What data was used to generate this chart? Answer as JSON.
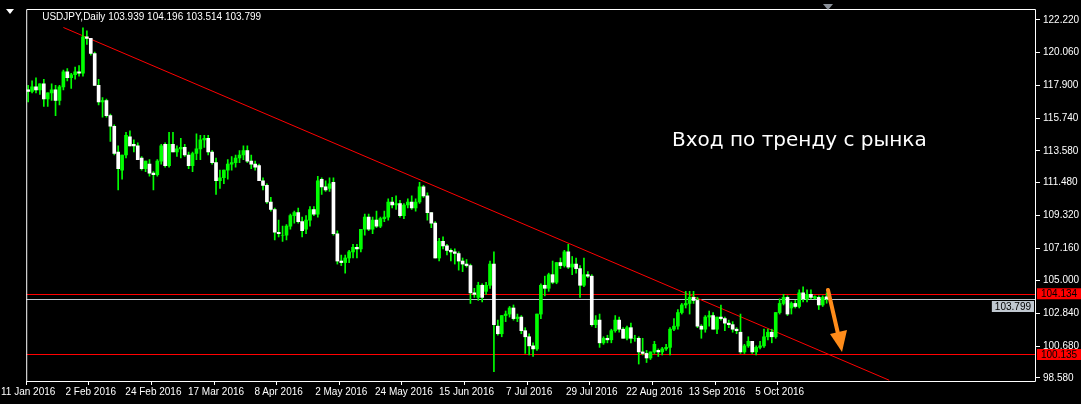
{
  "chart_data": {
    "type": "candlestick",
    "title": "USDJPY,Daily 103.939 104.196 103.514 103.799",
    "annotations": [
      "Вход по тренду с рынка"
    ],
    "categories": [
      "11 Jan 2016",
      null,
      null,
      null,
      null,
      null,
      null,
      null,
      null,
      null,
      null,
      null,
      null,
      null,
      null,
      null,
      "2 Feb 2016",
      null,
      null,
      null,
      null,
      null,
      null,
      null,
      null,
      null,
      null,
      null,
      null,
      null,
      null,
      null,
      "24 Feb 2016",
      null,
      null,
      null,
      null,
      null,
      null,
      null,
      null,
      null,
      null,
      null,
      null,
      null,
      null,
      null,
      "17 Mar 2016",
      null,
      null,
      null,
      null,
      null,
      null,
      null,
      null,
      null,
      null,
      null,
      null,
      null,
      null,
      null,
      "8 Apr 2016",
      null,
      null,
      null,
      null,
      null,
      null,
      null,
      null,
      null,
      null,
      null,
      null,
      null,
      null,
      null,
      "2 May 2016",
      null,
      null,
      null,
      null,
      null,
      null,
      null,
      null,
      null,
      null,
      null,
      null,
      null,
      null,
      null,
      "24 May 2016",
      null,
      null,
      null,
      null,
      null,
      null,
      null,
      null,
      null,
      null,
      null,
      null,
      null,
      null,
      null,
      "15 Jun 2016",
      null,
      null,
      null,
      null,
      null,
      null,
      null,
      null,
      null,
      null,
      null,
      null,
      null,
      null,
      null,
      "7 Jul 2016",
      null,
      null,
      null,
      null,
      null,
      null,
      null,
      null,
      null,
      null,
      null,
      null,
      null,
      null,
      null,
      "29 Jul 2016",
      null,
      null,
      null,
      null,
      null,
      null,
      null,
      null,
      null,
      null,
      null,
      null,
      null,
      null,
      null,
      "22 Aug 2016",
      null,
      null,
      null,
      null,
      null,
      null,
      null,
      null,
      null,
      null,
      null,
      null,
      null,
      null,
      null,
      "13 Sep 2016",
      null,
      null,
      null,
      null,
      null,
      null,
      null,
      null,
      null,
      null,
      null,
      null,
      null,
      null,
      null,
      "5 Oct 2016",
      null,
      null,
      null,
      null,
      null,
      null,
      null,
      null,
      null,
      null,
      null,
      null,
      null,
      null,
      null,
      null,
      null,
      null,
      null,
      null,
      null,
      null,
      null,
      null,
      null,
      null,
      null,
      null,
      null,
      null,
      null,
      null,
      null,
      null,
      null,
      null,
      null,
      null,
      null,
      null,
      null,
      null,
      null,
      null,
      null,
      null,
      null,
      null,
      null,
      null,
      null,
      null,
      null,
      null,
      null,
      null,
      null,
      null,
      null,
      null,
      null,
      null,
      null,
      null,
      null
    ],
    "color": "#00ff00",
    "colors": [
      "#ffffff",
      "#00ff00",
      "#ffffff",
      "#00ff00",
      "#ffffff",
      "#00ff00",
      "#00ff00",
      "#ffffff",
      "#00ff00",
      "#00ff00",
      "#ffffff",
      "#00ff00",
      "#00ff00",
      "#ffffff",
      "#00ff00",
      "#ffffff",
      "#ffffff",
      "#ffffff",
      "#ffffff",
      "#00ff00",
      "#ffffff",
      "#ffffff",
      "#ffffff",
      "#ffffff",
      "#00ff00",
      "#00ff00",
      "#ffffff",
      "#ffffff",
      "#ffffff",
      "#ffffff",
      "#00ff00",
      "#ffffff",
      "#ffffff",
      "#00ff00",
      "#00ff00",
      "#ffffff",
      "#00ff00",
      "#ffffff",
      "#00ff00",
      "#00ff00",
      "#ffffff",
      "#ffffff",
      "#00ff00",
      "#00ff00",
      "#00ff00",
      "#00ff00",
      "#ffffff",
      "#ffffff",
      "#ffffff",
      "#00ff00",
      "#00ff00",
      "#00ff00",
      "#00ff00",
      "#00ff00",
      "#00ff00",
      "#00ff00",
      "#ffffff",
      "#ffffff",
      "#ffffff",
      "#ffffff",
      "#ffffff",
      "#ffffff",
      "#ffffff",
      "#ffffff",
      "#ffffff",
      "#00ff00",
      "#00ff00",
      "#00ff00",
      "#00ff00",
      "#ffffff",
      "#ffffff",
      "#00ff00",
      "#00ff00",
      "#ffffff",
      "#00ff00",
      "#ffffff",
      "#ffffff",
      "#00ff00",
      "#ffffff",
      "#ffffff",
      "#ffffff",
      "#00ff00",
      "#00ff00",
      "#00ff00",
      "#ffffff",
      "#00ff00",
      "#00ff00",
      "#ffffff",
      "#00ff00",
      "#ffffff",
      "#00ff00",
      "#00ff00",
      "#00ff00",
      "#ffffff",
      "#00ff00",
      "#ffffff",
      "#00ff00",
      "#00ff00",
      "#ffffff",
      "#00ff00",
      "#00ff00",
      "#ffffff",
      "#ffffff",
      "#ffffff",
      "#ffffff",
      "#00ff00",
      "#ffffff",
      "#ffffff",
      "#ffffff",
      "#ffffff",
      "#ffffff",
      "#ffffff",
      "#ffffff",
      "#ffffff",
      "#ffffff",
      "#00ff00",
      "#ffffff",
      "#00ff00",
      "#00ff00",
      "#ffffff",
      "#ffffff",
      "#00ff00",
      "#00ff00",
      "#00ff00",
      "#ffffff",
      "#00ff00",
      "#ffffff",
      "#ffffff",
      "#ffffff",
      "#ffffff",
      "#00ff00",
      "#00ff00",
      "#ffffff",
      "#00ff00",
      "#ffffff",
      "#00ff00",
      "#ffffff",
      "#00ff00",
      "#ffffff",
      "#00ff00",
      "#ffffff",
      "#ffffff",
      "#00ff00",
      "#ffffff",
      "#ffffff",
      "#00ff00",
      "#ffffff",
      "#00ff00",
      "#ffffff",
      "#00ff00",
      "#00ff00",
      "#ffffff",
      "#ffffff",
      "#00ff00",
      "#ffffff",
      "#00ff00",
      "#ffffff",
      "#ffffff",
      "#ffffff",
      "#00ff00",
      "#00ff00",
      "#ffffff",
      "#00ff00",
      "#00ff00",
      "#00ff00",
      "#00ff00",
      "#00ff00",
      "#00ff00",
      "#00ff00",
      "#00ff00",
      "#ffffff",
      "#ffffff",
      "#ffffff",
      "#00ff00",
      "#00ff00",
      "#ffffff",
      "#00ff00",
      "#ffffff",
      "#ffffff",
      "#ffffff",
      "#ffffff",
      "#ffffff",
      "#ffffff",
      "#00ff00",
      "#00ff00",
      "#ffffff",
      "#00ff00",
      "#00ff00",
      "#00ff00",
      "#00ff00",
      "#ffffff",
      "#00ff00",
      "#00ff00",
      "#00ff00",
      "#ffffff",
      "#00ff00",
      "#ffffff",
      "#00ff00",
      "#ffffff",
      "#00ff00",
      "#ffffff",
      "#00ff00",
      "#ffffff",
      "#00ff00",
      "#ffffff",
      null,
      null,
      null,
      null,
      null,
      null,
      null,
      null,
      null,
      null,
      null,
      null,
      null,
      null,
      null,
      null,
      null,
      null,
      null,
      null,
      null,
      null,
      null,
      null,
      null,
      null,
      null,
      null,
      null,
      null,
      null,
      null,
      null,
      null,
      null,
      null,
      null,
      null,
      null,
      null,
      null,
      null,
      null,
      null,
      null,
      null,
      null,
      null,
      null,
      null,
      null,
      null,
      null
    ],
    "ohlc": [
      [
        117.6,
        117.9,
        116.8,
        117.5
      ],
      [
        117.5,
        118.2,
        117.4,
        117.8
      ],
      [
        117.8,
        118.4,
        117.4,
        117.6
      ],
      [
        117.6,
        118.0,
        117.3,
        118.0
      ],
      [
        118.0,
        118.3,
        116.5,
        117.0
      ],
      [
        117.0,
        117.4,
        116.5,
        117.4
      ],
      [
        117.4,
        118.0,
        116.9,
        117.6
      ],
      [
        117.6,
        117.9,
        115.9,
        116.9
      ],
      [
        116.9,
        117.9,
        116.6,
        117.8
      ],
      [
        117.8,
        118.9,
        117.6,
        118.8
      ],
      [
        118.8,
        119.0,
        118.2,
        118.4
      ],
      [
        118.4,
        118.7,
        117.7,
        118.6
      ],
      [
        118.6,
        119.1,
        118.3,
        118.8
      ],
      [
        118.8,
        119.2,
        118.5,
        118.7
      ],
      [
        118.7,
        121.7,
        118.5,
        121.1
      ],
      [
        121.1,
        121.5,
        120.6,
        121.0
      ],
      [
        121.0,
        121.0,
        119.9,
        120.0
      ],
      [
        120.0,
        120.1,
        117.9,
        117.9
      ],
      [
        117.9,
        118.3,
        116.6,
        116.8
      ],
      [
        116.8,
        117.1,
        115.8,
        116.9
      ],
      [
        116.9,
        117.0,
        115.8,
        115.9
      ],
      [
        115.9,
        116.0,
        114.2,
        115.2
      ],
      [
        115.2,
        115.3,
        113.3,
        113.4
      ],
      [
        113.5,
        113.9,
        111.0,
        112.4
      ],
      [
        112.3,
        113.3,
        111.7,
        113.3
      ],
      [
        113.3,
        114.8,
        113.1,
        114.6
      ],
      [
        114.5,
        114.9,
        113.9,
        113.9
      ],
      [
        114.0,
        114.3,
        113.5,
        113.9
      ],
      [
        113.9,
        114.1,
        113.0,
        113.0
      ],
      [
        113.1,
        113.2,
        112.3,
        112.4
      ],
      [
        112.4,
        112.9,
        112.2,
        112.9
      ],
      [
        112.7,
        113.0,
        111.9,
        112.1
      ],
      [
        112.1,
        112.2,
        111.0,
        112.0
      ],
      [
        112.0,
        113.0,
        111.9,
        112.9
      ],
      [
        112.9,
        114.0,
        112.7,
        113.9
      ],
      [
        114.0,
        114.1,
        112.5,
        112.6
      ],
      [
        112.6,
        114.8,
        112.5,
        114.0
      ],
      [
        114.0,
        114.8,
        113.5,
        113.5
      ],
      [
        113.5,
        113.9,
        113.2,
        113.7
      ],
      [
        113.7,
        114.4,
        113.1,
        113.8
      ],
      [
        113.8,
        114.0,
        113.2,
        113.3
      ],
      [
        113.3,
        113.5,
        112.4,
        112.6
      ],
      [
        112.6,
        113.5,
        112.2,
        113.4
      ],
      [
        113.4,
        114.7,
        113.0,
        113.7
      ],
      [
        113.7,
        114.6,
        113.0,
        114.3
      ],
      [
        114.3,
        114.6,
        113.8,
        114.4
      ],
      [
        114.4,
        114.6,
        113.3,
        113.5
      ],
      [
        113.5,
        113.6,
        112.7,
        112.8
      ],
      [
        112.8,
        113.1,
        110.7,
        111.6
      ],
      [
        111.6,
        112.3,
        111.1,
        111.8
      ],
      [
        111.8,
        112.3,
        111.4,
        112.3
      ],
      [
        112.3,
        113.0,
        111.7,
        112.7
      ],
      [
        112.7,
        113.2,
        112.3,
        112.8
      ],
      [
        112.8,
        113.3,
        112.5,
        113.1
      ],
      [
        113.1,
        113.6,
        112.8,
        113.3
      ],
      [
        113.3,
        113.9,
        113.0,
        113.6
      ],
      [
        113.6,
        113.9,
        112.8,
        112.9
      ],
      [
        112.9,
        113.3,
        112.4,
        112.7
      ],
      [
        112.7,
        112.9,
        112.3,
        112.5
      ],
      [
        112.6,
        112.7,
        111.6,
        111.6
      ],
      [
        111.6,
        111.8,
        111.0,
        111.3
      ],
      [
        111.3,
        111.4,
        110.1,
        110.2
      ],
      [
        110.2,
        110.5,
        109.6,
        109.7
      ],
      [
        109.7,
        109.8,
        107.7,
        108.2
      ],
      [
        108.2,
        109.0,
        107.9,
        108.1
      ],
      [
        108.0,
        108.6,
        107.6,
        108.0
      ],
      [
        108.0,
        108.7,
        107.7,
        108.6
      ],
      [
        108.6,
        109.4,
        108.4,
        109.3
      ],
      [
        109.3,
        109.6,
        108.8,
        109.5
      ],
      [
        109.5,
        109.8,
        108.8,
        108.9
      ],
      [
        108.9,
        109.2,
        107.9,
        108.3
      ],
      [
        108.4,
        109.3,
        108.1,
        109.0
      ],
      [
        109.0,
        109.9,
        108.6,
        109.7
      ],
      [
        109.7,
        109.9,
        109.3,
        109.4
      ],
      [
        109.4,
        111.9,
        109.2,
        111.6
      ],
      [
        111.7,
        111.8,
        110.7,
        111.2
      ],
      [
        111.2,
        111.6,
        110.9,
        111.0
      ],
      [
        111.1,
        111.8,
        110.9,
        111.4
      ],
      [
        111.5,
        111.8,
        108.0,
        108.1
      ],
      [
        108.1,
        108.3,
        106.1,
        106.3
      ],
      [
        106.3,
        106.7,
        106.0,
        106.2
      ],
      [
        106.2,
        106.7,
        105.5,
        106.5
      ],
      [
        106.5,
        107.0,
        106.2,
        106.9
      ],
      [
        106.9,
        107.4,
        106.5,
        107.2
      ],
      [
        107.2,
        107.4,
        106.5,
        107.1
      ],
      [
        107.1,
        108.4,
        106.9,
        108.4
      ],
      [
        108.4,
        109.4,
        108.0,
        109.2
      ],
      [
        109.2,
        109.4,
        108.3,
        108.4
      ],
      [
        108.4,
        109.2,
        108.1,
        109.0
      ],
      [
        109.0,
        109.6,
        108.5,
        108.6
      ],
      [
        108.6,
        109.2,
        108.5,
        109.1
      ],
      [
        109.1,
        109.6,
        108.9,
        109.2
      ],
      [
        109.2,
        110.4,
        109.0,
        110.2
      ],
      [
        110.2,
        110.5,
        109.8,
        110.0
      ],
      [
        110.0,
        110.6,
        109.7,
        110.1
      ],
      [
        110.1,
        110.3,
        109.2,
        109.3
      ],
      [
        109.3,
        110.1,
        109.1,
        110.0
      ],
      [
        110.0,
        110.4,
        109.8,
        110.2
      ],
      [
        110.2,
        110.6,
        109.7,
        109.8
      ],
      [
        109.8,
        110.4,
        109.6,
        110.2
      ],
      [
        110.2,
        111.5,
        110.1,
        111.2
      ],
      [
        111.2,
        111.3,
        110.5,
        110.6
      ],
      [
        110.6,
        110.8,
        109.0,
        109.5
      ],
      [
        109.5,
        109.5,
        108.5,
        108.8
      ],
      [
        108.8,
        108.9,
        106.5,
        106.5
      ],
      [
        106.5,
        107.8,
        106.3,
        107.6
      ],
      [
        107.6,
        107.9,
        107.1,
        107.3
      ],
      [
        107.3,
        107.4,
        106.7,
        107.0
      ],
      [
        107.0,
        107.1,
        106.3,
        106.9
      ],
      [
        106.9,
        107.1,
        106.1,
        106.8
      ],
      [
        106.8,
        106.9,
        105.7,
        106.3
      ],
      [
        106.3,
        106.5,
        105.6,
        106.1
      ],
      [
        106.1,
        106.4,
        105.9,
        106.0
      ],
      [
        106.0,
        106.1,
        103.5,
        104.2
      ],
      [
        104.2,
        104.5,
        103.9,
        104.1
      ],
      [
        103.9,
        104.9,
        103.7,
        104.7
      ],
      [
        104.7,
        104.8,
        103.6,
        103.9
      ],
      [
        104.3,
        104.9,
        104.1,
        104.7
      ],
      [
        104.7,
        106.3,
        104.5,
        106.1
      ],
      [
        106.1,
        106.9,
        99.0,
        102.1
      ],
      [
        102.0,
        102.4,
        101.4,
        101.5
      ],
      [
        101.5,
        102.7,
        101.3,
        102.7
      ],
      [
        102.7,
        103.0,
        102.3,
        102.8
      ],
      [
        102.8,
        103.3,
        102.6,
        103.2
      ],
      [
        103.2,
        103.4,
        102.4,
        102.5
      ],
      [
        102.5,
        102.8,
        102.3,
        102.6
      ],
      [
        102.6,
        102.7,
        101.5,
        101.7
      ],
      [
        101.7,
        101.9,
        100.2,
        101.3
      ],
      [
        101.3,
        101.5,
        100.1,
        100.7
      ],
      [
        100.7,
        100.9,
        100.0,
        100.5
      ],
      [
        100.5,
        102.8,
        100.4,
        102.8
      ],
      [
        102.8,
        104.8,
        102.5,
        104.7
      ],
      [
        104.7,
        105.3,
        104.0,
        104.5
      ],
      [
        104.5,
        105.5,
        104.3,
        105.4
      ],
      [
        105.4,
        106.3,
        104.8,
        104.9
      ],
      [
        104.9,
        106.2,
        104.8,
        106.2
      ],
      [
        106.2,
        106.5,
        105.8,
        106.0
      ],
      [
        106.0,
        107.0,
        105.9,
        106.9
      ],
      [
        106.9,
        107.4,
        105.8,
        105.9
      ],
      [
        105.9,
        106.6,
        105.4,
        106.1
      ],
      [
        106.1,
        106.5,
        105.5,
        105.8
      ],
      [
        105.8,
        106.0,
        103.9,
        104.7
      ],
      [
        104.7,
        106.5,
        104.6,
        105.4
      ],
      [
        105.4,
        105.6,
        105.2,
        105.3
      ],
      [
        105.3,
        105.4,
        102.0,
        102.1
      ],
      [
        102.1,
        102.7,
        101.9,
        102.4
      ],
      [
        102.4,
        102.8,
        100.6,
        100.9
      ],
      [
        100.9,
        101.3,
        100.8,
        101.2
      ],
      [
        101.2,
        101.4,
        100.9,
        101.1
      ],
      [
        101.1,
        101.8,
        100.9,
        101.7
      ],
      [
        101.7,
        102.7,
        101.6,
        102.4
      ],
      [
        102.4,
        102.6,
        101.6,
        101.8
      ],
      [
        101.8,
        101.9,
        101.2,
        101.2
      ],
      [
        101.2,
        102.0,
        101.1,
        101.9
      ],
      [
        101.9,
        102.2,
        100.9,
        101.2
      ],
      [
        101.2,
        101.4,
        101.0,
        101.2
      ],
      [
        101.2,
        101.3,
        99.5,
        100.3
      ],
      [
        100.3,
        101.2,
        100.1,
        100.2
      ],
      [
        100.2,
        100.4,
        99.6,
        99.9
      ],
      [
        99.9,
        100.3,
        99.8,
        100.3
      ],
      [
        100.3,
        101.0,
        100.2,
        100.8
      ],
      [
        100.4,
        100.5,
        100.0,
        100.3
      ],
      [
        100.3,
        100.6,
        100.1,
        100.5
      ],
      [
        100.5,
        100.8,
        100.4,
        100.6
      ],
      [
        100.6,
        101.9,
        100.1,
        101.8
      ],
      [
        101.8,
        102.5,
        101.7,
        102.0
      ],
      [
        102.0,
        103.1,
        101.8,
        102.9
      ],
      [
        102.9,
        103.5,
        102.8,
        103.4
      ],
      [
        103.4,
        104.3,
        103.2,
        103.5
      ],
      [
        103.5,
        104.3,
        102.8,
        103.9
      ],
      [
        103.9,
        104.3,
        103.5,
        103.7
      ],
      [
        103.7,
        103.9,
        101.9,
        102.0
      ],
      [
        102.0,
        102.1,
        101.2,
        101.8
      ],
      [
        101.8,
        102.7,
        101.6,
        102.6
      ],
      [
        102.6,
        103.0,
        102.0,
        102.7
      ],
      [
        102.7,
        102.9,
        101.8,
        101.8
      ],
      [
        101.8,
        102.6,
        101.5,
        102.6
      ],
      [
        102.6,
        103.4,
        102.4,
        102.5
      ],
      [
        102.5,
        102.6,
        101.7,
        102.2
      ],
      [
        102.2,
        102.4,
        101.9,
        102.1
      ],
      [
        102.1,
        102.3,
        101.6,
        101.8
      ],
      [
        101.8,
        101.9,
        101.5,
        101.7
      ],
      [
        101.6,
        102.8,
        100.2,
        100.3
      ],
      [
        100.3,
        100.8,
        100.2,
        100.7
      ],
      [
        100.7,
        101.3,
        100.6,
        101.0
      ],
      [
        101.0,
        101.0,
        100.2,
        100.3
      ],
      [
        100.3,
        100.7,
        100.1,
        100.6
      ],
      [
        100.6,
        101.0,
        100.5,
        100.7
      ],
      [
        100.7,
        101.8,
        100.6,
        101.3
      ],
      [
        101.3,
        101.8,
        101.1,
        101.6
      ],
      [
        101.6,
        101.8,
        100.9,
        101.3
      ],
      [
        101.3,
        102.9,
        101.2,
        102.9
      ],
      [
        102.9,
        103.8,
        102.8,
        103.5
      ],
      [
        103.5,
        104.1,
        103.4,
        103.9
      ],
      [
        103.9,
        104.0,
        102.7,
        102.8
      ],
      [
        103.2,
        103.6,
        102.8,
        103.5
      ],
      [
        103.5,
        103.7,
        103.2,
        103.3
      ],
      [
        103.3,
        104.4,
        103.2,
        104.2
      ],
      [
        104.2,
        104.6,
        103.6,
        103.8
      ],
      [
        103.8,
        104.4,
        103.6,
        104.1
      ],
      [
        104.1,
        104.4,
        103.8,
        103.9
      ],
      [
        103.85,
        104.0,
        103.8,
        103.95
      ],
      [
        103.9,
        104.0,
        103.1,
        103.4
      ],
      [
        103.4,
        104.0,
        103.3,
        103.9
      ],
      [
        103.939,
        104.196,
        103.514,
        103.799
      ],
      null,
      null,
      null,
      null,
      null,
      null,
      null,
      null,
      null,
      null,
      null,
      null,
      null,
      null,
      null,
      null,
      null,
      null,
      null,
      null,
      null,
      null,
      null,
      null,
      null,
      null,
      null,
      null,
      null,
      null,
      null,
      null,
      null,
      null,
      null,
      null,
      null,
      null,
      null,
      null,
      null,
      null,
      null,
      null,
      null,
      null,
      null,
      null,
      null,
      null,
      null,
      null,
      null
    ],
    "series": [
      {
        "type": "line",
        "color": "#ff0000",
        "values": [
          null,
          null,
          null,
          null,
          null,
          null,
          null,
          null,
          null,
          121.72,
          null,
          null,
          null,
          null,
          null,
          null,
          null,
          null,
          null,
          null,
          null,
          null,
          null,
          null,
          null,
          null,
          null,
          null,
          null,
          null,
          null,
          null,
          null,
          null,
          null,
          null,
          null,
          null,
          null,
          null,
          null,
          null,
          null,
          null,
          null,
          null,
          null,
          null,
          null,
          null,
          null,
          null,
          null,
          null,
          null,
          null,
          null,
          null,
          null,
          null,
          null,
          null,
          null,
          null,
          null,
          null,
          null,
          null,
          null,
          null,
          null,
          null,
          null,
          null,
          null,
          null,
          null,
          null,
          null,
          null,
          null,
          null,
          null,
          null,
          null,
          null,
          null,
          null,
          null,
          null,
          null,
          null,
          null,
          null,
          null,
          null,
          null,
          null,
          null,
          null,
          null,
          null,
          null,
          null,
          null,
          null,
          null,
          null,
          null,
          null,
          null,
          null,
          null,
          null,
          null,
          null,
          null,
          null,
          null,
          null,
          null,
          null,
          null,
          null,
          null,
          null,
          null,
          null,
          null,
          null,
          null,
          null,
          null,
          null,
          null,
          null,
          null,
          null,
          null,
          null,
          null,
          null,
          null,
          null,
          null,
          null,
          null,
          null,
          null,
          null,
          null,
          null,
          null,
          null,
          null,
          null,
          null,
          null,
          null,
          null,
          null,
          null,
          null,
          null,
          null,
          null,
          null,
          null,
          null,
          null,
          null,
          null,
          null,
          null,
          null,
          null,
          null,
          null,
          null,
          null,
          null,
          null,
          null,
          null,
          null,
          null,
          null,
          null,
          null,
          null,
          null,
          null,
          null,
          null,
          null,
          null,
          null,
          null,
          null,
          null,
          null,
          null,
          null,
          null,
          null,
          null,
          null,
          null,
          null,
          null,
          null,
          null,
          null,
          null,
          null,
          null,
          null,
          null,
          null,
          null,
          98.43,
          null,
          null,
          null,
          null,
          null,
          null,
          null,
          null,
          null,
          null,
          null,
          null,
          null,
          null,
          null,
          null,
          null,
          null,
          null,
          null,
          null,
          null,
          null,
          null,
          null,
          null,
          null,
          null,
          null,
          null,
          null,
          null,
          null,
          null,
          null,
          null,
          null
        ]
      }
    ],
    "ylim": [
      98.38,
      122.94
    ],
    "yticks": [
      {
        "value": 122.22,
        "label": "122.220"
      },
      {
        "value": 120.06,
        "label": "120.060"
      },
      {
        "value": 117.9,
        "label": "117.900"
      },
      {
        "value": 115.74,
        "label": "115.740"
      },
      {
        "value": 113.58,
        "label": "113.580"
      },
      {
        "value": 111.48,
        "label": "111.480"
      },
      {
        "value": 109.32,
        "label": "109.320"
      },
      {
        "value": 107.16,
        "label": "107.160"
      },
      {
        "value": 105,
        "label": "105.000"
      },
      {
        "value": 102.84,
        "label": "102.840"
      },
      {
        "value": 100.68,
        "label": "100.680"
      },
      {
        "value": 98.58,
        "label": "98.580"
      }
    ],
    "ref_lines": [
      {
        "axis": "y",
        "value": 104.134,
        "label": "104.134",
        "color": "#ff0000"
      },
      {
        "axis": "y",
        "value": 103.799,
        "label": "103.799",
        "color": "#c0c8d0"
      },
      {
        "axis": "y",
        "value": 100.135,
        "label": "100.135",
        "color": "#ff0000"
      }
    ],
    "grid": false,
    "legend": false
  }
}
